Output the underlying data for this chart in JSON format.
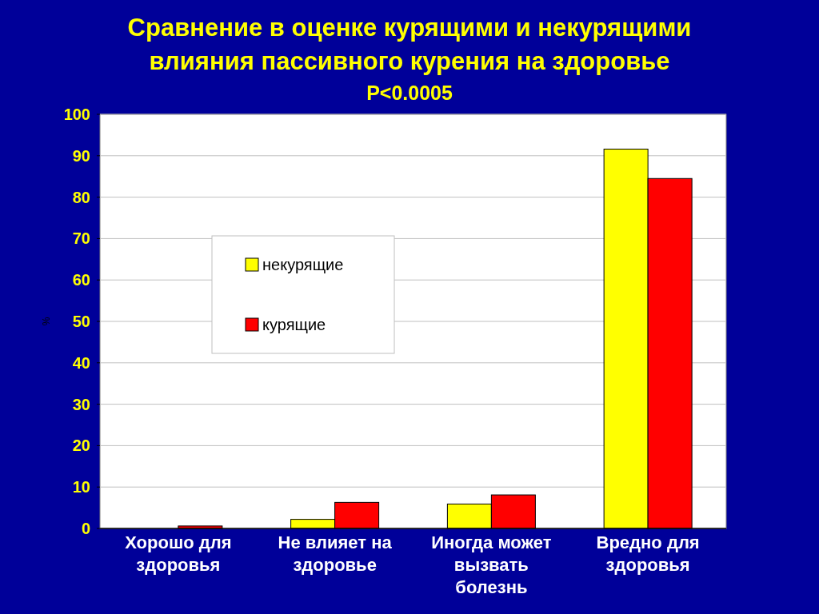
{
  "chart_data": {
    "type": "bar",
    "title": "Сравнение в оценке курящими и некурящими влияния пассивного курения на здоровье",
    "subtitle": "P<0.0005",
    "ylabel": "%",
    "categories": [
      "Хорошо для здоровья",
      "Не влияет на здоровье",
      "Иногда может вызвать болезнь",
      "Вредно для здоровья"
    ],
    "series": [
      {
        "name": "некурящие",
        "color": "#ffff00",
        "values": [
          0,
          2.2,
          5.9,
          91.6
        ]
      },
      {
        "name": "курящие",
        "color": "#ff0000",
        "values": [
          0.6,
          6.3,
          8.1,
          84.5
        ]
      }
    ],
    "ylim": [
      0,
      100
    ],
    "yticks": [
      0,
      10,
      20,
      30,
      40,
      50,
      60,
      70,
      80,
      90,
      100
    ],
    "grid": "y",
    "legend": "top left"
  }
}
